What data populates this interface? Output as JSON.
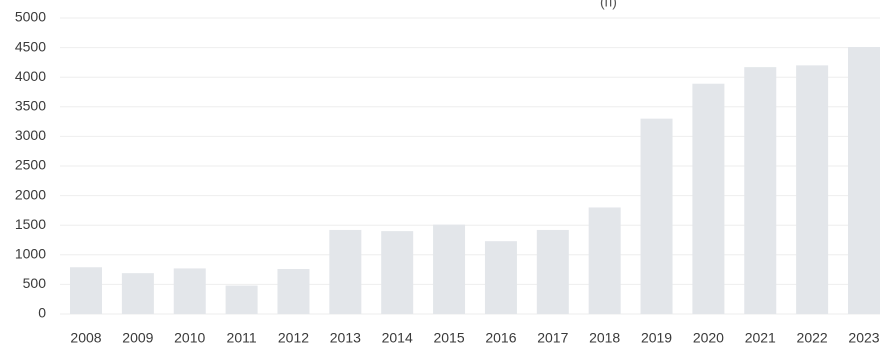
{
  "chart_data": {
    "type": "bar",
    "title": "",
    "xlabel": "",
    "ylabel": "",
    "categories": [
      "2008",
      "2009",
      "2010",
      "2011",
      "2012",
      "2013",
      "2014",
      "2015",
      "2016",
      "2017",
      "2018",
      "2019",
      "2020",
      "2021",
      "2022",
      "2023"
    ],
    "values": [
      790,
      690,
      770,
      480,
      760,
      1420,
      1400,
      1510,
      1230,
      1420,
      1800,
      3300,
      3890,
      4170,
      4200,
      4510
    ],
    "ylim": [
      0,
      5000
    ],
    "yticks": [
      "0",
      "500",
      "1000",
      "1500",
      "2000",
      "2500",
      "3000",
      "3500",
      "4000",
      "4500",
      "5000"
    ],
    "grid": true,
    "colors": {
      "bar": "#e3e6ea",
      "grid": "#eeeeee",
      "text": "#3a3a3a"
    },
    "clipped_title_fragment": "(п)"
  }
}
